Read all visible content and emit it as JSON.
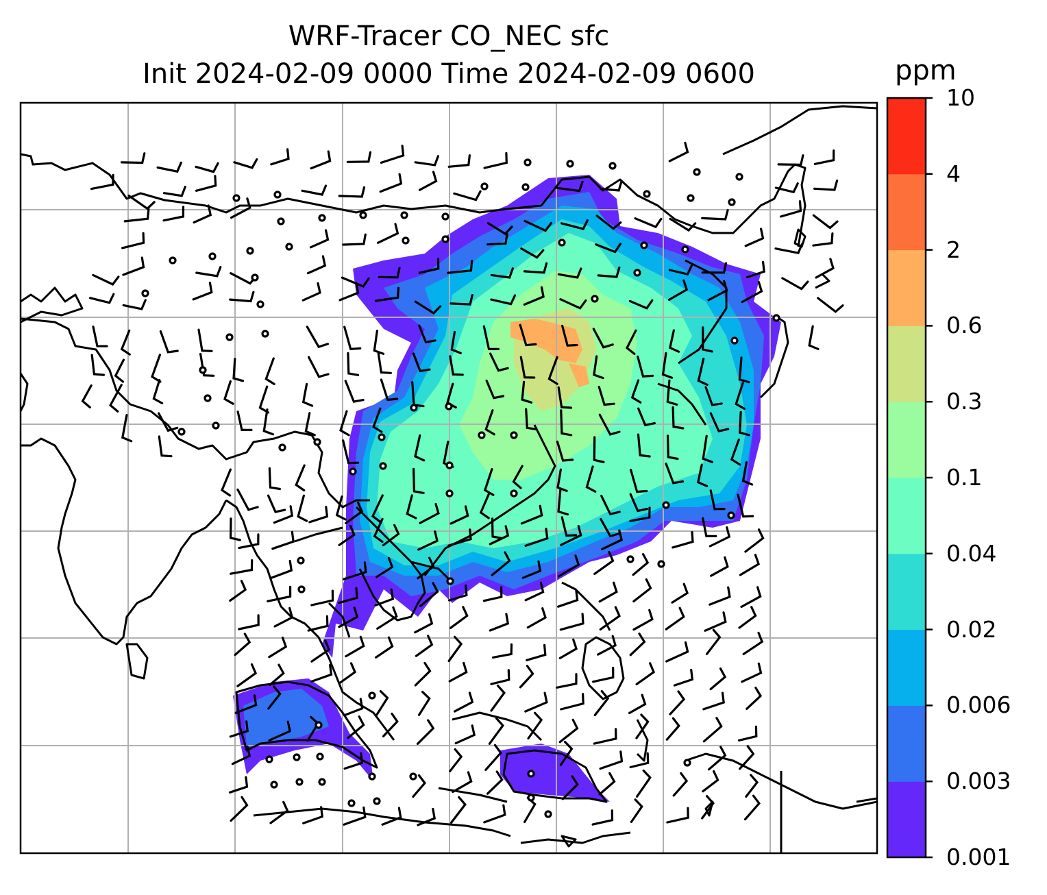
{
  "title_line1": "WRF-Tracer CO_NEC sfc",
  "title_line2": "Init 2024-02-09 0000 Time 2024-02-09 0600",
  "colorbar": {
    "unit": "ppm",
    "levels": [
      "0.001",
      "0.003",
      "0.006",
      "0.02",
      "0.04",
      "0.1",
      "0.3",
      "0.6",
      "2",
      "4",
      "10"
    ],
    "colors": [
      "#6528fa",
      "#3373f2",
      "#06b0ec",
      "#2fdcd4",
      "#6cfdc3",
      "#9afc9e",
      "#cde283",
      "#feae5c",
      "#fd7039",
      "#fd2c16"
    ]
  },
  "map": {
    "plume_levels_shown": [
      "0.001",
      "0.003",
      "0.006",
      "0.02",
      "0.04",
      "0.1",
      "0.3",
      "0.6"
    ],
    "gridlines": true,
    "wind_barbs": true
  }
}
